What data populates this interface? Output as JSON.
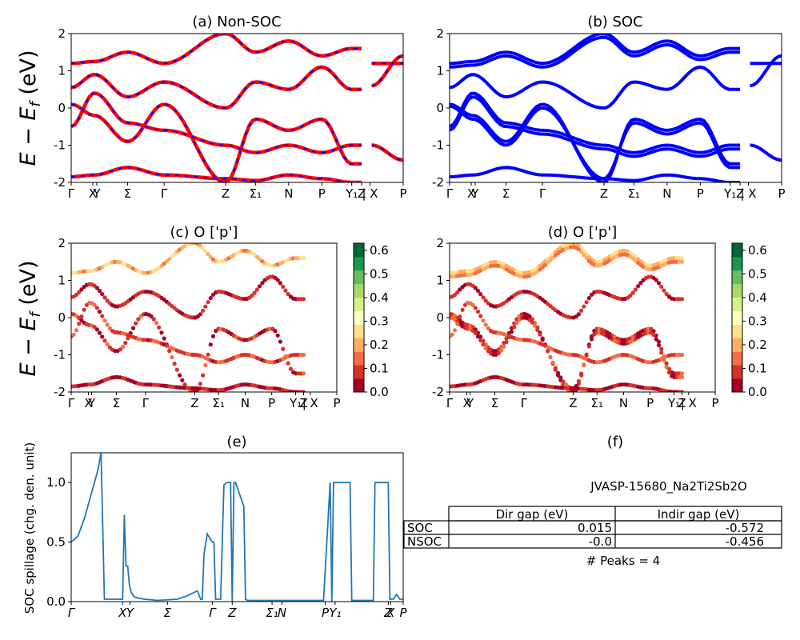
{
  "kpath_labels": [
    "Γ",
    "X",
    "Y",
    "Σ",
    "Γ",
    "Z",
    "Σ₁",
    "N",
    "P",
    "Y₁",
    "Z",
    "| X",
    "P"
  ],
  "kpath_labels_e": [
    "Γ",
    "X",
    "Y",
    "Σ",
    "Γ",
    "Z",
    "Σ₁N",
    "P",
    "Y₁",
    "Z",
    "X",
    "P"
  ],
  "ylabel_energy": "E − E_f (eV)",
  "ylabel_spillage": "SOC spillage (chg. den. unit)",
  "colorbar_ticks": [
    "0.0",
    "0.1",
    "0.2",
    "0.3",
    "0.4",
    "0.5",
    "0.6"
  ],
  "colors": {
    "nonsoc_line": "#ff0000",
    "nonsoc_dash": "#0000ff",
    "soc_line": "#0000ff",
    "spillage_line": "#1f77b4",
    "colormap": [
      "#a50026",
      "#d73027",
      "#f46d43",
      "#fdae61",
      "#fee08b",
      "#ffffbf",
      "#d9ef8b",
      "#a6d96a",
      "#66bd63",
      "#1a9850",
      "#006837"
    ]
  },
  "table": {
    "title": "JVASP-15680_Na2Ti2Sb2O",
    "headers": [
      "",
      "Dir gap (eV)",
      "Indir gap (eV)"
    ],
    "rows": [
      [
        "SOC",
        "0.015",
        "-0.572"
      ],
      [
        "NSOC",
        "-0.0",
        "-0.456"
      ]
    ],
    "peaks": "# Peaks = 4"
  },
  "chart_data": [
    {
      "id": "a",
      "type": "line",
      "title": "(a) Non-SOC",
      "ylabel": "E − E_f (eV)",
      "ylim": [
        -2,
        2
      ],
      "yticks": [
        -2,
        -1,
        0,
        1,
        2
      ],
      "xlim": [
        0,
        1
      ],
      "xticks": [
        0,
        0.065,
        0.077,
        0.17,
        0.28,
        0.465,
        0.555,
        0.655,
        0.755,
        0.845,
        0.875,
        0.9,
        1.0
      ],
      "xtick_labels": [
        "Γ",
        "X",
        "Y",
        "Σ",
        "Γ",
        "Z",
        "Σ₁",
        "N",
        "P",
        "Y₁",
        "Z",
        "| X",
        "P"
      ],
      "legend": "none",
      "style": "solid red with blue dashes",
      "series": [
        {
          "x": [
            0,
            0.07,
            0.17,
            0.28,
            0.465,
            0.555,
            0.655,
            0.755,
            0.845,
            0.875
          ],
          "y": [
            0.1,
            -0.2,
            -0.9,
            0.1,
            -2.0,
            -0.3,
            -0.6,
            -0.3,
            -1.5,
            -1.5
          ]
        },
        {
          "x": [
            0,
            0.07,
            0.17,
            0.28,
            0.465,
            0.555,
            0.655,
            0.755,
            0.845,
            0.875
          ],
          "y": [
            -0.5,
            0.4,
            -0.4,
            -0.6,
            -1.0,
            -1.2,
            -1.0,
            -1.2,
            -1.0,
            -1.0
          ]
        },
        {
          "x": [
            0,
            0.07,
            0.17,
            0.28,
            0.465,
            0.555,
            0.655,
            0.755,
            0.845,
            0.875
          ],
          "y": [
            0.55,
            0.9,
            0.3,
            0.7,
            0.0,
            0.7,
            0.5,
            1.1,
            0.5,
            0.5
          ]
        },
        {
          "x": [
            0,
            0.07,
            0.17,
            0.28,
            0.465,
            0.555,
            0.655,
            0.755,
            0.845,
            0.875
          ],
          "y": [
            1.2,
            1.25,
            1.5,
            1.2,
            2.0,
            1.5,
            1.8,
            1.4,
            1.6,
            1.6
          ]
        },
        {
          "x": [
            0,
            0.07,
            0.17,
            0.28,
            0.465,
            0.555,
            0.655,
            0.755,
            0.845,
            0.875
          ],
          "y": [
            -1.85,
            -1.8,
            -1.6,
            -1.8,
            -1.9,
            -1.95,
            -1.8,
            -1.9,
            -2.0,
            -2.0
          ]
        },
        {
          "x": [
            0.905,
            1.0
          ],
          "y": [
            1.2,
            1.2
          ]
        },
        {
          "x": [
            0.905,
            1.0
          ],
          "y": [
            0.6,
            1.4
          ]
        },
        {
          "x": [
            0.905,
            1.0
          ],
          "y": [
            -1.0,
            -1.4
          ]
        }
      ]
    },
    {
      "id": "b",
      "type": "line",
      "title": "(b) SOC",
      "ylim": [
        -2,
        2
      ],
      "yticks": [
        -2,
        -1,
        0,
        1,
        2
      ],
      "xlim": [
        0,
        1
      ],
      "xticks": [
        0,
        0.065,
        0.077,
        0.17,
        0.28,
        0.465,
        0.555,
        0.655,
        0.755,
        0.845,
        0.875,
        0.9,
        1.0
      ],
      "xtick_labels": [
        "Γ",
        "X",
        "Y",
        "Σ",
        "Γ",
        "Z",
        "Σ₁",
        "N",
        "P",
        "Y₁",
        "Z",
        "| X",
        "P"
      ],
      "legend": "none",
      "style": "solid blue",
      "series": [
        {
          "x": [
            0,
            0.07,
            0.17,
            0.28,
            0.465,
            0.555,
            0.655,
            0.755,
            0.845,
            0.875
          ],
          "y": [
            0.1,
            -0.2,
            -0.9,
            0.1,
            -2.0,
            -0.3,
            -0.6,
            -0.3,
            -1.5,
            -1.5
          ]
        },
        {
          "x": [
            0,
            0.07,
            0.17,
            0.28,
            0.465,
            0.555,
            0.655,
            0.755,
            0.845,
            0.875
          ],
          "y": [
            0.05,
            -0.3,
            -1.0,
            0.0,
            -1.9,
            -0.4,
            -0.7,
            -0.4,
            -1.6,
            -1.6
          ]
        },
        {
          "x": [
            0,
            0.07,
            0.17,
            0.28,
            0.465,
            0.555,
            0.655,
            0.755,
            0.845,
            0.875
          ],
          "y": [
            -0.5,
            0.4,
            -0.4,
            -0.6,
            -1.0,
            -1.2,
            -1.0,
            -1.2,
            -1.0,
            -1.0
          ]
        },
        {
          "x": [
            0,
            0.07,
            0.17,
            0.28,
            0.465,
            0.555,
            0.655,
            0.755,
            0.845,
            0.875
          ],
          "y": [
            -0.6,
            0.3,
            -0.5,
            -0.7,
            -1.1,
            -1.3,
            -1.1,
            -1.3,
            -1.1,
            -1.1
          ]
        },
        {
          "x": [
            0,
            0.07,
            0.17,
            0.28,
            0.465,
            0.555,
            0.655,
            0.755,
            0.845,
            0.875
          ],
          "y": [
            0.55,
            0.9,
            0.3,
            0.7,
            0.0,
            0.7,
            0.5,
            1.1,
            0.5,
            0.5
          ]
        },
        {
          "x": [
            0,
            0.07,
            0.17,
            0.28,
            0.465,
            0.555,
            0.655,
            0.755,
            0.845,
            0.875
          ],
          "y": [
            1.2,
            1.25,
            1.5,
            1.2,
            2.0,
            1.5,
            1.8,
            1.4,
            1.6,
            1.6
          ]
        },
        {
          "x": [
            0,
            0.07,
            0.17,
            0.28,
            0.465,
            0.555,
            0.655,
            0.755,
            0.845,
            0.875
          ],
          "y": [
            1.1,
            1.15,
            1.4,
            1.1,
            1.9,
            1.4,
            1.7,
            1.3,
            1.5,
            1.5
          ]
        },
        {
          "x": [
            0,
            0.07,
            0.17,
            0.28,
            0.465,
            0.555,
            0.655,
            0.755,
            0.845,
            0.875
          ],
          "y": [
            -1.85,
            -1.8,
            -1.6,
            -1.8,
            -1.9,
            -1.95,
            -1.8,
            -1.9,
            -2.0,
            -2.0
          ]
        },
        {
          "x": [
            0.905,
            1.0
          ],
          "y": [
            1.2,
            1.2
          ]
        },
        {
          "x": [
            0.905,
            1.0
          ],
          "y": [
            0.6,
            1.4
          ]
        },
        {
          "x": [
            0.905,
            1.0
          ],
          "y": [
            -1.0,
            -1.4
          ]
        }
      ]
    },
    {
      "id": "c",
      "type": "scatter",
      "title": "(c)  O ['p']",
      "ylim": [
        -2,
        2
      ],
      "yticks": [
        -2,
        -1,
        0,
        1,
        2
      ],
      "xlim": [
        0,
        1
      ],
      "xticks": [
        0,
        0.065,
        0.077,
        0.17,
        0.28,
        0.465,
        0.555,
        0.655,
        0.755,
        0.845,
        0.875,
        0.9,
        1.0
      ],
      "xtick_labels": [
        "Γ",
        "X",
        "Y",
        "Σ",
        "Γ",
        "Z",
        "Σ₁",
        "N",
        "P",
        "Y₁",
        "Z",
        "| X",
        "P"
      ],
      "colorbar": {
        "range": [
          0.0,
          0.63
        ],
        "ticks": [
          0.0,
          0.1,
          0.2,
          0.3,
          0.4,
          0.5,
          0.6
        ],
        "colormap": "RdYlGn"
      },
      "legend": "none",
      "series": [
        {
          "x": [
            0,
            0.07,
            0.17,
            0.28,
            0.465,
            0.555,
            0.655,
            0.755,
            0.845,
            0.875
          ],
          "y": [
            0.1,
            -0.2,
            -0.9,
            0.1,
            -2.0,
            -0.3,
            -0.6,
            -0.3,
            -1.5,
            -1.5
          ],
          "c": 0.05
        },
        {
          "x": [
            0,
            0.07,
            0.17,
            0.28,
            0.465,
            0.555,
            0.655,
            0.755,
            0.845,
            0.875
          ],
          "y": [
            -0.5,
            0.4,
            -0.4,
            -0.6,
            -1.0,
            -1.2,
            -1.0,
            -1.2,
            -1.0,
            -1.0
          ],
          "c": 0.08
        },
        {
          "x": [
            0,
            0.07,
            0.17,
            0.28,
            0.465,
            0.555,
            0.655,
            0.755,
            0.845,
            0.875
          ],
          "y": [
            0.55,
            0.9,
            0.3,
            0.7,
            0.0,
            0.7,
            0.5,
            1.1,
            0.5,
            0.5
          ],
          "c": 0.04
        },
        {
          "x": [
            0,
            0.07,
            0.17,
            0.28,
            0.465,
            0.555,
            0.655,
            0.755,
            0.845,
            0.875
          ],
          "y": [
            1.2,
            1.25,
            1.5,
            1.2,
            2.0,
            1.5,
            1.8,
            1.4,
            1.6,
            1.6
          ],
          "c": 0.2
        },
        {
          "x": [
            0,
            0.07,
            0.17,
            0.28,
            0.465,
            0.555,
            0.655,
            0.755,
            0.845,
            0.875
          ],
          "y": [
            -1.85,
            -1.8,
            -1.6,
            -1.8,
            -1.9,
            -1.95,
            -1.8,
            -1.9,
            -2.0,
            -2.0
          ],
          "c": 0.02
        }
      ]
    },
    {
      "id": "d",
      "type": "scatter",
      "title": "(d) O ['p']",
      "ylim": [
        -2,
        2
      ],
      "yticks": [
        -2,
        -1,
        0,
        1,
        2
      ],
      "xlim": [
        0,
        1
      ],
      "xticks": [
        0,
        0.065,
        0.077,
        0.17,
        0.28,
        0.465,
        0.555,
        0.655,
        0.755,
        0.845,
        0.875,
        0.9,
        1.0
      ],
      "xtick_labels": [
        "Γ",
        "X",
        "Y",
        "Σ",
        "Γ",
        "Z",
        "Σ₁",
        "N",
        "P",
        "Y₁",
        "Z",
        "| X",
        "P"
      ],
      "colorbar": {
        "range": [
          0.0,
          0.63
        ],
        "ticks": [
          0.0,
          0.1,
          0.2,
          0.3,
          0.4,
          0.5,
          0.6
        ],
        "colormap": "RdYlGn"
      },
      "legend": "none",
      "series": [
        {
          "x": [
            0,
            0.07,
            0.17,
            0.28,
            0.465,
            0.555,
            0.655,
            0.755,
            0.845,
            0.875
          ],
          "y": [
            0.1,
            -0.2,
            -0.9,
            0.1,
            -2.0,
            -0.3,
            -0.6,
            -0.3,
            -1.5,
            -1.5
          ],
          "c": 0.05
        },
        {
          "x": [
            0,
            0.07,
            0.17,
            0.28,
            0.465,
            0.555,
            0.655,
            0.755,
            0.845,
            0.875
          ],
          "y": [
            0.0,
            -0.3,
            -1.0,
            0.0,
            -1.9,
            -0.4,
            -0.7,
            -0.4,
            -1.6,
            -1.6
          ],
          "c": 0.06
        },
        {
          "x": [
            0,
            0.07,
            0.17,
            0.28,
            0.465,
            0.555,
            0.655,
            0.755,
            0.845,
            0.875
          ],
          "y": [
            -0.5,
            0.4,
            -0.4,
            -0.6,
            -1.0,
            -1.2,
            -1.0,
            -1.2,
            -1.0,
            -1.0
          ],
          "c": 0.1
        },
        {
          "x": [
            0,
            0.07,
            0.17,
            0.28,
            0.465,
            0.555,
            0.655,
            0.755,
            0.845,
            0.875
          ],
          "y": [
            0.55,
            0.9,
            0.3,
            0.7,
            0.0,
            0.7,
            0.5,
            1.1,
            0.5,
            0.5
          ],
          "c": 0.04
        },
        {
          "x": [
            0,
            0.07,
            0.17,
            0.28,
            0.465,
            0.555,
            0.655,
            0.755,
            0.845,
            0.875
          ],
          "y": [
            1.2,
            1.25,
            1.5,
            1.2,
            2.0,
            1.5,
            1.8,
            1.4,
            1.6,
            1.6
          ],
          "c": 0.22
        },
        {
          "x": [
            0,
            0.07,
            0.17,
            0.28,
            0.465,
            0.555,
            0.655,
            0.755,
            0.845,
            0.875
          ],
          "y": [
            1.1,
            1.15,
            1.4,
            1.1,
            1.9,
            1.4,
            1.7,
            1.3,
            1.5,
            1.5
          ],
          "c": 0.15
        },
        {
          "x": [
            0,
            0.07,
            0.17,
            0.28,
            0.465,
            0.555,
            0.655,
            0.755,
            0.845,
            0.875
          ],
          "y": [
            -1.85,
            -1.8,
            -1.6,
            -1.8,
            -1.9,
            -1.95,
            -1.8,
            -1.9,
            -2.0,
            -2.0
          ],
          "c": 0.02
        }
      ]
    },
    {
      "id": "e",
      "type": "line",
      "title": "(e)",
      "ylabel": "SOC spillage (chg. den. unit)",
      "ylim": [
        0.0,
        1.25
      ],
      "yticks": [
        0.0,
        0.5,
        1.0
      ],
      "ytick_labels": [
        "0.0",
        "0.5",
        "1.0"
      ],
      "xlim": [
        0,
        1
      ],
      "xticks": [
        0,
        0.155,
        0.177,
        0.29,
        0.425,
        0.485,
        0.605,
        0.635,
        0.765,
        0.795,
        0.955,
        0.962,
        1.0
      ],
      "xtick_labels": [
        "Γ",
        "X",
        "Y",
        "Σ",
        "Γ",
        "Z",
        "Σ₁",
        "N",
        "P",
        "Y₁",
        "Z",
        "X",
        "P"
      ],
      "legend": "none",
      "series": [
        {
          "x": [
            0,
            0.02,
            0.04,
            0.06,
            0.08,
            0.09,
            0.1,
            0.125,
            0.155,
            0.16,
            0.165,
            0.17,
            0.175,
            0.18,
            0.19,
            0.2,
            0.22,
            0.26,
            0.32,
            0.35,
            0.38,
            0.39,
            0.395,
            0.4,
            0.41,
            0.42,
            0.425,
            0.43,
            0.435,
            0.45,
            0.46,
            0.47,
            0.475,
            0.48,
            0.485,
            0.49,
            0.495,
            0.52,
            0.525,
            0.53,
            0.535,
            0.55,
            0.555,
            0.56,
            0.6,
            0.65,
            0.7,
            0.76,
            0.78,
            0.785,
            0.79,
            0.8,
            0.84,
            0.845,
            0.85,
            0.9,
            0.91,
            0.915,
            0.95,
            0.955,
            0.96,
            0.97,
            0.98,
            0.99,
            1.0
          ],
          "y": [
            0.5,
            0.55,
            0.7,
            0.9,
            1.1,
            1.25,
            0.02,
            0.02,
            0.02,
            0.73,
            0.3,
            0.3,
            0.15,
            0.08,
            0.04,
            0.03,
            0.02,
            0.01,
            0.02,
            0.05,
            0.09,
            0.02,
            0.02,
            0.4,
            0.57,
            0.52,
            0.5,
            0.5,
            0.02,
            0.02,
            0.98,
            1.0,
            1.0,
            1.0,
            0.0,
            1.0,
            1.0,
            0.8,
            0.02,
            0.01,
            0.01,
            0.01,
            0.01,
            0.01,
            0.01,
            0.01,
            0.01,
            0.01,
            1.0,
            0.0,
            1.0,
            1.0,
            1.0,
            0.01,
            0.01,
            0.01,
            0.01,
            1.0,
            1.0,
            1.0,
            0.02,
            0.02,
            0.06,
            0.02,
            0.02
          ]
        }
      ]
    }
  ]
}
